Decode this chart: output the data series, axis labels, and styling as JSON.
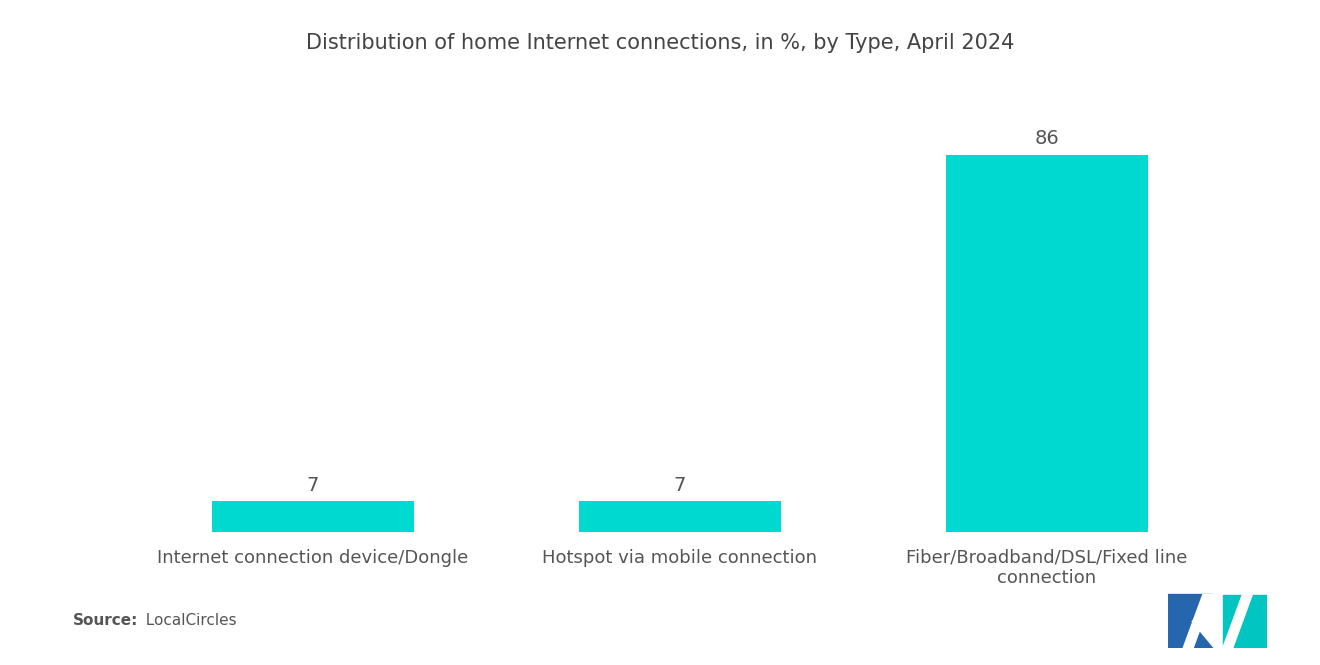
{
  "title": "Distribution of home Internet connections, in %, by Type, April 2024",
  "categories": [
    "Internet connection device/Dongle",
    "Hotspot via mobile connection",
    "Fiber/Broadband/DSL/Fixed line\nconnection"
  ],
  "values": [
    7,
    7,
    86
  ],
  "bar_color": "#00D9D0",
  "background_color": "#ffffff",
  "title_fontsize": 15,
  "label_fontsize": 13,
  "value_fontsize": 14,
  "source_bold": "Source:",
  "source_normal": "  LocalCircles",
  "ylim": [
    0,
    100
  ],
  "bar_width": 0.55,
  "logo_blue": "#2566AE",
  "logo_teal": "#00C5C0"
}
